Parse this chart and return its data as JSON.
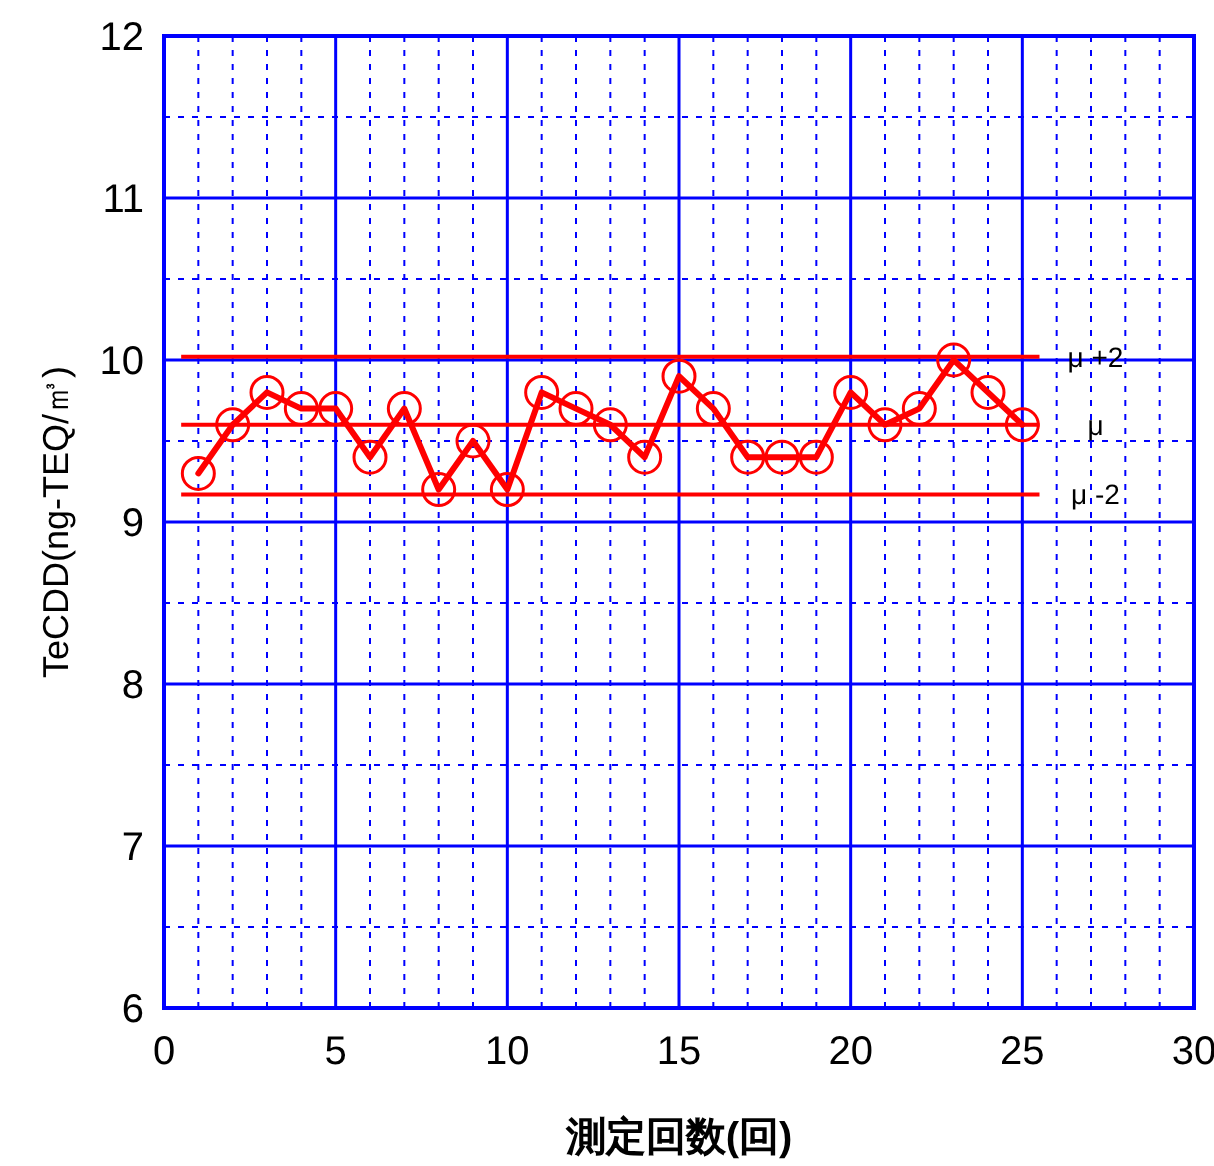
{
  "chart_data": {
    "type": "line",
    "xlabel": "測定回数(回)",
    "ylabel": "TeCDD(ng-TEQ/㎥)",
    "x": [
      1,
      2,
      3,
      4,
      5,
      6,
      7,
      8,
      9,
      10,
      11,
      12,
      13,
      14,
      15,
      16,
      17,
      18,
      19,
      20,
      21,
      22,
      23,
      24,
      25
    ],
    "series": [
      {
        "color": "#ff0000",
        "values": [
          9.3,
          9.6,
          9.8,
          9.7,
          9.7,
          9.4,
          9.7,
          9.2,
          9.5,
          9.2,
          9.8,
          9.7,
          9.6,
          9.4,
          9.9,
          9.7,
          9.4,
          9.4,
          9.4,
          9.8,
          9.6,
          9.7,
          10.0,
          9.8,
          9.6
        ]
      }
    ],
    "marker": "circle",
    "line_style": "solid",
    "grid": true,
    "xlim": [
      0,
      30
    ],
    "ylim": [
      6,
      12
    ],
    "xticks": [
      0,
      {
        "value": 1,
        "label": null
      },
      {
        "value": 2,
        "label": null
      },
      {
        "value": 3,
        "label": null
      },
      {
        "value": 4,
        "label": null
      },
      5,
      {
        "value": 6,
        "label": null
      },
      {
        "value": 7,
        "label": null
      },
      {
        "value": 8,
        "label": null
      },
      {
        "value": 9,
        "label": null
      },
      10,
      {
        "value": 11,
        "label": null
      },
      {
        "value": 12,
        "label": null
      },
      {
        "value": 13,
        "label": null
      },
      {
        "value": 14,
        "label": null
      },
      15,
      {
        "value": 16,
        "label": null
      },
      {
        "value": 17,
        "label": null
      },
      {
        "value": 18,
        "label": null
      },
      {
        "value": 19,
        "label": null
      },
      20,
      {
        "value": 21,
        "label": null
      },
      {
        "value": 22,
        "label": null
      },
      {
        "value": 23,
        "label": null
      },
      {
        "value": 24,
        "label": null
      },
      25,
      {
        "value": 26,
        "label": null
      },
      {
        "value": 27,
        "label": null
      },
      {
        "value": 28,
        "label": null
      },
      {
        "value": 29,
        "label": null
      },
      30
    ],
    "yticks": [
      6,
      {
        "value": 6.5,
        "label": null
      },
      7,
      {
        "value": 7.5,
        "label": null
      },
      8,
      {
        "value": 8.5,
        "label": null
      },
      9,
      {
        "value": 9.5,
        "label": null
      },
      10,
      {
        "value": 10.5,
        "label": null
      },
      11,
      {
        "value": 11.5,
        "label": null
      },
      12
    ],
    "ref_lines": [
      {
        "axis": "y",
        "value": 10.02,
        "label": "μ +2",
        "color": "#ff0000"
      },
      {
        "axis": "y",
        "value": 9.6,
        "label": "μ",
        "color": "#ff0000"
      },
      {
        "axis": "y",
        "value": 9.17,
        "label": "μ -2",
        "color": "#ff0000"
      }
    ]
  }
}
